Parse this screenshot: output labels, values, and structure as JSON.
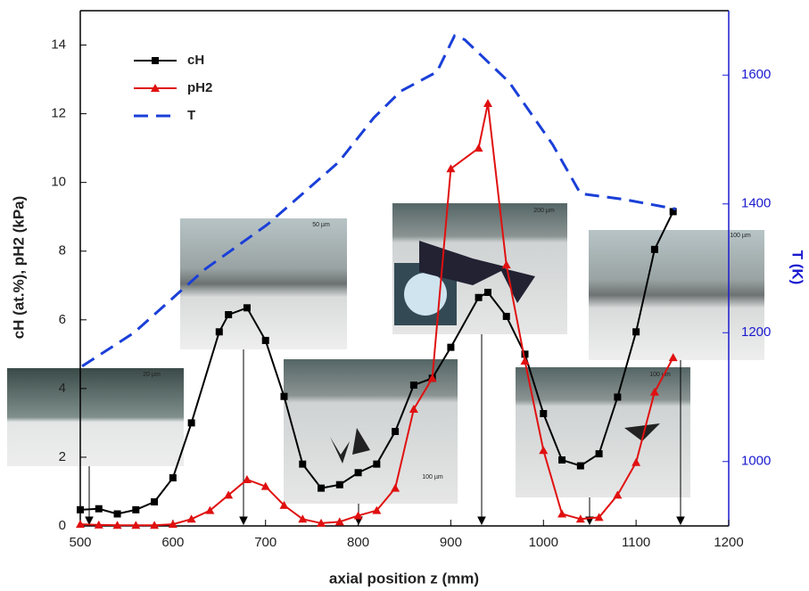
{
  "chart_data": {
    "type": "line",
    "x_label": "axial position z (mm)",
    "y_label": "cH (at.%), pH2 (kPa)",
    "y2_label": "T (K)",
    "xlim": [
      500,
      1200
    ],
    "xticks": [
      500,
      600,
      700,
      800,
      900,
      1000,
      1100,
      1200
    ],
    "ylim": [
      0,
      15
    ],
    "yticks": [
      0,
      2,
      4,
      6,
      8,
      10,
      12,
      14
    ],
    "y2lim": [
      900,
      1700
    ],
    "y2ticks": [
      1000,
      1200,
      1400,
      1600
    ],
    "y2_color": "#1a1ad0",
    "series": [
      {
        "name": "cH",
        "color": "#000000",
        "marker": "square",
        "x": [
          500,
          520,
          540,
          560,
          580,
          600,
          620,
          650,
          660,
          680,
          700,
          720,
          740,
          760,
          780,
          800,
          820,
          840,
          860,
          880,
          900,
          930,
          940,
          960,
          980,
          1000,
          1020,
          1040,
          1060,
          1080,
          1100,
          1120,
          1140
        ],
        "values": [
          0.47,
          0.5,
          0.35,
          0.47,
          0.7,
          1.4,
          3.0,
          5.65,
          6.15,
          6.35,
          5.4,
          3.77,
          1.8,
          1.1,
          1.2,
          1.55,
          1.8,
          2.75,
          4.1,
          4.3,
          5.2,
          6.65,
          6.8,
          6.1,
          5.0,
          3.27,
          1.92,
          1.75,
          2.1,
          3.75,
          5.65,
          8.05,
          9.15
        ]
      },
      {
        "name": "pH2",
        "color": "#e01010",
        "marker": "triangle",
        "x": [
          500,
          520,
          540,
          560,
          580,
          600,
          620,
          640,
          660,
          680,
          700,
          720,
          740,
          760,
          780,
          800,
          820,
          840,
          860,
          880,
          900,
          930,
          940,
          960,
          980,
          1000,
          1020,
          1040,
          1060,
          1080,
          1100,
          1120,
          1140
        ],
        "values": [
          0.05,
          0.03,
          0.02,
          0.02,
          0.02,
          0.05,
          0.2,
          0.45,
          0.9,
          1.35,
          1.15,
          0.6,
          0.2,
          0.08,
          0.12,
          0.3,
          0.45,
          1.1,
          3.4,
          4.3,
          10.4,
          11.0,
          12.3,
          7.6,
          4.8,
          2.2,
          0.35,
          0.2,
          0.25,
          0.9,
          1.85,
          3.9,
          4.9
        ]
      },
      {
        "name": "T",
        "color": "#1a3fd8",
        "marker": "dash",
        "axis": "y2",
        "x": [
          502,
          558,
          635,
          702,
          779,
          817,
          846,
          885,
          904,
          915,
          963,
          1010,
          1040,
          1087,
          1143
        ],
        "values": [
          1148,
          1200,
          1299,
          1368,
          1465,
          1534,
          1575,
          1605,
          1661,
          1655,
          1589,
          1492,
          1416,
          1407,
          1392
        ]
      }
    ],
    "inset_scales": [
      "20 µm",
      "50 µm",
      "100 µm",
      "200 µm",
      "100 µm",
      "100 µm"
    ]
  }
}
